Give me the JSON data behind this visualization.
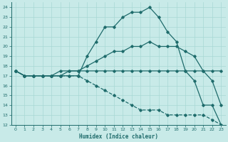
{
  "xlabel": "Humidex (Indice chaleur)",
  "background_color": "#c8eae8",
  "grid_color": "#a8d8d4",
  "line_color": "#1e6b6b",
  "xlim": [
    -0.5,
    23.5
  ],
  "ylim": [
    12,
    24.5
  ],
  "yticks": [
    12,
    13,
    14,
    15,
    16,
    17,
    18,
    19,
    20,
    21,
    22,
    23,
    24
  ],
  "xticks": [
    0,
    1,
    2,
    3,
    4,
    5,
    6,
    7,
    8,
    9,
    10,
    11,
    12,
    13,
    14,
    15,
    16,
    17,
    18,
    19,
    20,
    21,
    22,
    23
  ],
  "lines": [
    {
      "x": [
        0,
        1,
        2,
        3,
        4,
        5,
        6,
        7,
        8,
        9,
        10,
        11,
        12,
        13,
        14,
        15,
        16,
        17,
        18,
        19,
        20,
        21,
        22,
        23
      ],
      "y": [
        17.5,
        17.0,
        17.0,
        17.0,
        17.0,
        17.0,
        17.0,
        17.0,
        19.0,
        20.5,
        22.0,
        22.0,
        23.0,
        23.5,
        23.5,
        24.0,
        23.0,
        21.5,
        20.5,
        17.5,
        16.5,
        14.0,
        14.0,
        12.0
      ],
      "ls": "-",
      "marker": "D",
      "markersize": 1.8,
      "linewidth": 0.9
    },
    {
      "x": [
        0,
        1,
        2,
        3,
        4,
        5,
        6,
        7,
        8,
        9,
        10,
        11,
        12,
        13,
        14,
        15,
        16,
        17,
        18,
        19,
        20,
        21,
        22,
        23
      ],
      "y": [
        17.5,
        17.0,
        17.0,
        17.0,
        17.0,
        17.5,
        17.5,
        17.5,
        18.0,
        18.5,
        19.0,
        19.5,
        19.5,
        20.0,
        20.0,
        20.5,
        20.0,
        20.0,
        20.0,
        19.5,
        19.0,
        17.5,
        16.5,
        14.0
      ],
      "ls": "-",
      "marker": "D",
      "markersize": 1.8,
      "linewidth": 0.9
    },
    {
      "x": [
        0,
        1,
        2,
        3,
        4,
        5,
        6,
        7,
        8,
        9,
        10,
        11,
        12,
        13,
        14,
        15,
        16,
        17,
        18,
        19,
        20,
        21,
        22,
        23
      ],
      "y": [
        17.5,
        17.0,
        17.0,
        17.0,
        17.0,
        17.0,
        17.5,
        17.5,
        17.5,
        17.5,
        17.5,
        17.5,
        17.5,
        17.5,
        17.5,
        17.5,
        17.5,
        17.5,
        17.5,
        17.5,
        17.5,
        17.5,
        17.5,
        17.5
      ],
      "ls": "-",
      "marker": "D",
      "markersize": 1.8,
      "linewidth": 0.9
    },
    {
      "x": [
        0,
        1,
        2,
        3,
        4,
        5,
        6,
        7,
        8,
        9,
        10,
        11,
        12,
        13,
        14,
        15,
        16,
        17,
        18,
        19,
        20,
        21,
        22,
        23
      ],
      "y": [
        17.5,
        17.0,
        17.0,
        17.0,
        17.0,
        17.0,
        17.0,
        17.0,
        16.5,
        16.0,
        15.5,
        15.0,
        14.5,
        14.0,
        13.5,
        13.5,
        13.5,
        13.0,
        13.0,
        13.0,
        13.0,
        13.0,
        12.5,
        12.0
      ],
      "ls": "--",
      "marker": "D",
      "markersize": 1.8,
      "linewidth": 0.9
    }
  ]
}
